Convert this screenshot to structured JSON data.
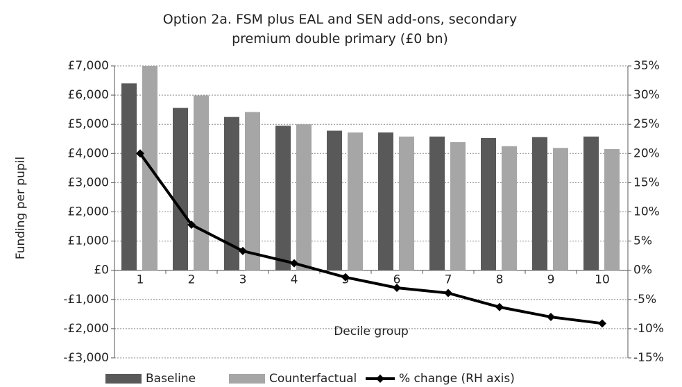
{
  "chart_data": {
    "type": "bar",
    "title": "Option 2a. FSM plus EAL and SEN add-ons, secondary premium double primary (£0 bn)",
    "x_label": "Decile group",
    "y_label": "Funding per pupil",
    "categories": [
      "1",
      "2",
      "3",
      "4",
      "5",
      "6",
      "7",
      "8",
      "9",
      "10"
    ],
    "series": [
      {
        "name": "Baseline",
        "color": "#595959",
        "values": [
          6400,
          5560,
          5250,
          4950,
          4780,
          4720,
          4580,
          4530,
          4560,
          4580
        ]
      },
      {
        "name": "Counterfactual",
        "color": "#a6a6a6",
        "values": [
          7000,
          5990,
          5420,
          5000,
          4720,
          4580,
          4390,
          4250,
          4190,
          4150
        ]
      },
      {
        "name": "% change (RH axis)",
        "color": "#000000",
        "type": "line",
        "axis": "y2",
        "values": [
          20,
          7.8,
          3.3,
          1.2,
          -1.2,
          -3.0,
          -3.9,
          -6.3,
          -8.0,
          -9.1
        ]
      }
    ],
    "ylim": [
      -3000,
      7000
    ],
    "yticks": [
      {
        "value": -3000,
        "label": "-£3,000"
      },
      {
        "value": -2000,
        "label": "-£2,000"
      },
      {
        "value": -1000,
        "label": "-£1,000"
      },
      {
        "value": 0,
        "label": "£0"
      },
      {
        "value": 1000,
        "label": "£1,000"
      },
      {
        "value": 2000,
        "label": "£2,000"
      },
      {
        "value": 3000,
        "label": "£3,000"
      },
      {
        "value": 4000,
        "label": "£4,000"
      },
      {
        "value": 5000,
        "label": "£5,000"
      },
      {
        "value": 6000,
        "label": "£6,000"
      },
      {
        "value": 7000,
        "label": "£7,000"
      }
    ],
    "y2lim": [
      -15,
      35
    ],
    "y2ticks": [
      {
        "value": -15,
        "label": "-15%"
      },
      {
        "value": -10,
        "label": "-10%"
      },
      {
        "value": -5,
        "label": "-5%"
      },
      {
        "value": 0,
        "label": "0%"
      },
      {
        "value": 5,
        "label": "5%"
      },
      {
        "value": 10,
        "label": "10%"
      },
      {
        "value": 15,
        "label": "15%"
      },
      {
        "value": 20,
        "label": "20%"
      },
      {
        "value": 25,
        "label": "25%"
      },
      {
        "value": 30,
        "label": "30%"
      },
      {
        "value": 35,
        "label": "35%"
      }
    ],
    "grid": true,
    "legend": "bottom"
  }
}
